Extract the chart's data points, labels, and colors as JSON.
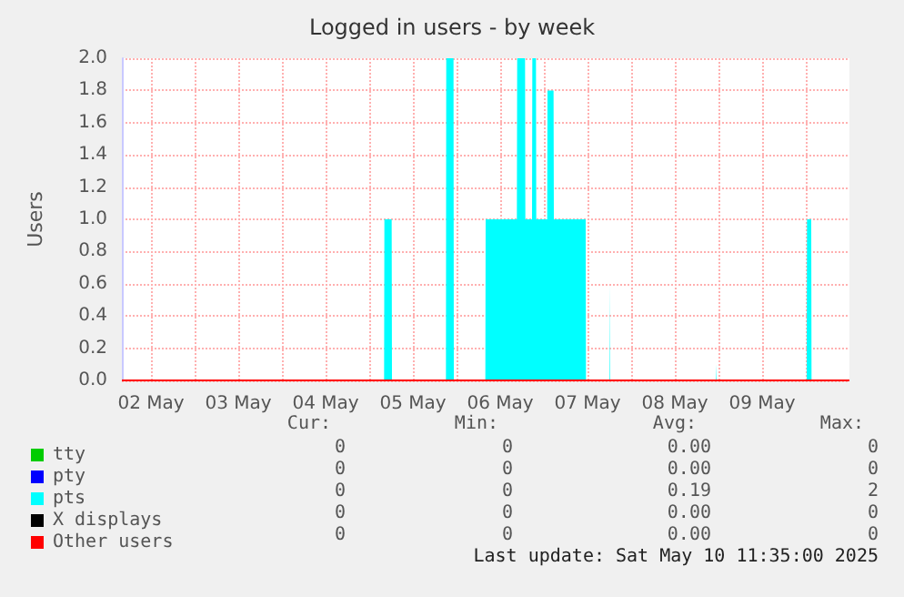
{
  "chart_data": {
    "type": "area",
    "title": "Logged in users - by week",
    "ylabel": "Users",
    "xlim": [
      "2025-05-02T04:00",
      "2025-05-10T12:00"
    ],
    "xticks": [
      {
        "value": "2025-05-02T12:00",
        "label": "02 May"
      },
      {
        "value": "2025-05-03T00:00",
        "label": null
      },
      {
        "value": "2025-05-03T12:00",
        "label": "03 May"
      },
      {
        "value": "2025-05-04T00:00",
        "label": null
      },
      {
        "value": "2025-05-04T12:00",
        "label": "04 May"
      },
      {
        "value": "2025-05-05T00:00",
        "label": null
      },
      {
        "value": "2025-05-05T12:00",
        "label": "05 May"
      },
      {
        "value": "2025-05-06T00:00",
        "label": null
      },
      {
        "value": "2025-05-06T12:00",
        "label": "06 May"
      },
      {
        "value": "2025-05-07T00:00",
        "label": null
      },
      {
        "value": "2025-05-07T12:00",
        "label": "07 May"
      },
      {
        "value": "2025-05-08T00:00",
        "label": null
      },
      {
        "value": "2025-05-08T12:00",
        "label": "08 May"
      },
      {
        "value": "2025-05-09T00:00",
        "label": null
      },
      {
        "value": "2025-05-09T12:00",
        "label": "09 May"
      },
      {
        "value": "2025-05-10T00:00",
        "label": null
      }
    ],
    "ylim": [
      0,
      2
    ],
    "yticks": [
      {
        "value": 0,
        "label": "0.0"
      },
      {
        "value": 0.2,
        "label": "0.2"
      },
      {
        "value": 0.4,
        "label": "0.4"
      },
      {
        "value": 0.6,
        "label": "0.6"
      },
      {
        "value": 0.8,
        "label": "0.8"
      },
      {
        "value": 1,
        "label": "1.0"
      },
      {
        "value": 1.2,
        "label": "1.2"
      },
      {
        "value": 1.4,
        "label": "1.4"
      },
      {
        "value": 1.6,
        "label": "1.6"
      },
      {
        "value": 1.8,
        "label": "1.8"
      },
      {
        "value": 2,
        "label": "2.0"
      }
    ],
    "grid": true,
    "legend": "bottom left",
    "series": [
      {
        "name": "tty",
        "type": "line",
        "color": "#00cc00"
      },
      {
        "name": "pty",
        "type": "line",
        "color": "#0000ff"
      },
      {
        "name": "pts",
        "color": "#00ffff",
        "x": [
          "2025-05-02T04:00",
          "2025-05-05T04:05",
          "2025-05-05T04:10",
          "2025-05-05T06:10",
          "2025-05-05T06:15",
          "2025-05-05T21:05",
          "2025-05-05T21:10",
          "2025-05-05T23:10",
          "2025-05-05T23:15",
          "2025-05-06T07:55",
          "2025-05-06T08:00",
          "2025-05-06T16:35",
          "2025-05-06T16:40",
          "2025-05-06T18:50",
          "2025-05-06T18:55",
          "2025-05-06T20:45",
          "2025-05-06T20:50",
          "2025-05-06T21:50",
          "2025-05-06T21:55",
          "2025-05-07T00:55",
          "2025-05-07T01:00",
          "2025-05-07T02:40",
          "2025-05-07T02:45",
          "2025-05-07T11:30",
          "2025-05-07T11:35",
          "2025-05-07T18:05",
          "2025-05-07T18:10",
          "2025-05-07T18:15",
          "2025-05-08T23:15",
          "2025-05-08T23:20",
          "2025-05-08T23:25",
          "2025-05-10T00:15",
          "2025-05-10T00:20",
          "2025-05-10T01:30",
          "2025-05-10T01:35",
          "2025-05-10T12:00"
        ],
        "values": [
          0,
          0,
          1,
          1,
          0,
          0,
          2,
          2,
          0,
          0,
          1,
          1,
          2,
          2,
          1,
          1,
          2,
          2,
          1,
          1,
          1.8,
          1.8,
          1,
          1,
          0,
          0,
          0.6,
          0,
          0,
          0.1,
          0,
          0,
          1,
          1,
          0,
          0
        ]
      },
      {
        "name": "X displays",
        "type": "line",
        "color": "#000000"
      },
      {
        "name": "Other users",
        "type": "line",
        "color": "#ff0000",
        "x": [
          "2025-05-02T04:00",
          "2025-05-10T12:00"
        ],
        "values": [
          0,
          0
        ]
      }
    ],
    "annotations": [
      "Cur:",
      "Min:",
      "Avg:",
      "Max:",
      "0",
      "0",
      "0.00",
      "0",
      "0",
      "0",
      "0.00",
      "0",
      "0",
      "0",
      "0.19",
      "2",
      "0",
      "0",
      "0.00",
      "0",
      "0",
      "0",
      "0.00",
      "0",
      "Last update: Sat May 10 11:35:00 2025"
    ]
  }
}
